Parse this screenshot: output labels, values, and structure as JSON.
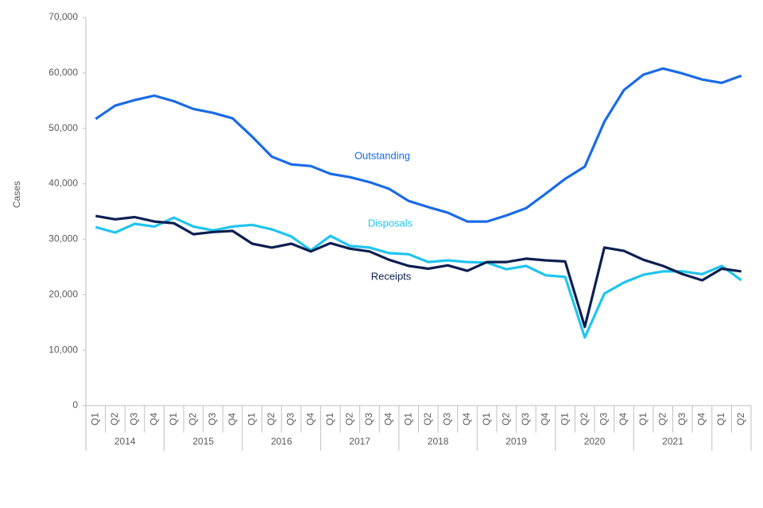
{
  "chart_data": {
    "type": "line",
    "y_label": "Cases",
    "categories": [
      "Q1",
      "Q2",
      "Q3",
      "Q4",
      "Q1",
      "Q2",
      "Q3",
      "Q4",
      "Q1",
      "Q2",
      "Q3",
      "Q4",
      "Q1",
      "Q2",
      "Q3",
      "Q4",
      "Q1",
      "Q2",
      "Q3",
      "Q4",
      "Q1",
      "Q2",
      "Q3",
      "Q4",
      "Q1",
      "Q2",
      "Q3",
      "Q4",
      "Q1",
      "Q2",
      "Q3",
      "Q4",
      "Q1",
      "Q2"
    ],
    "category_groups": [
      "2014",
      "2015",
      "2016",
      "2017",
      "2018",
      "2019",
      "2020",
      "2021",
      null
    ],
    "series": [
      {
        "name": "Outstanding",
        "color": "#1a6be6",
        "values": [
          51700,
          54100,
          55100,
          55900,
          54900,
          53500,
          52800,
          51800,
          48500,
          44900,
          43500,
          43200,
          41800,
          41200,
          40300,
          39100,
          36900,
          35800,
          34800,
          33200,
          33200,
          34300,
          35600,
          38200,
          40900,
          43100,
          51200,
          56900,
          59700,
          60800,
          59900,
          58800,
          58200,
          59500
        ]
      },
      {
        "name": "Disposals",
        "color": "#1fc4f0",
        "values": [
          32200,
          31200,
          32800,
          32300,
          33900,
          32300,
          31600,
          32300,
          32600,
          31800,
          30500,
          28000,
          30600,
          28800,
          28500,
          27500,
          27300,
          25900,
          26200,
          25900,
          25800,
          24600,
          25200,
          23500,
          23200,
          12300,
          20200,
          22200,
          23600,
          24200,
          24200,
          23700,
          25200,
          22600
        ]
      },
      {
        "name": "Receipts",
        "color": "#0c1f52",
        "values": [
          34200,
          33600,
          34000,
          33200,
          32900,
          30900,
          31300,
          31500,
          29200,
          28500,
          29200,
          27800,
          29300,
          28300,
          27800,
          26300,
          25200,
          24700,
          25300,
          24300,
          25900,
          25900,
          26500,
          26200,
          26000,
          14200,
          28500,
          27900,
          26300,
          25200,
          23700,
          22600,
          24700,
          24200
        ]
      }
    ],
    "ylim": [
      0,
      70000
    ],
    "yticks": [
      0,
      {
        "value": 10000,
        "label": "10,000"
      },
      {
        "value": 20000,
        "label": "20,000"
      },
      {
        "value": 30000,
        "label": "30,000"
      },
      {
        "value": 40000,
        "label": "40,000"
      },
      {
        "value": 50000,
        "label": "50,000"
      },
      {
        "value": 60000,
        "label": "60,000"
      },
      {
        "value": 70000,
        "label": "70,000"
      }
    ]
  }
}
